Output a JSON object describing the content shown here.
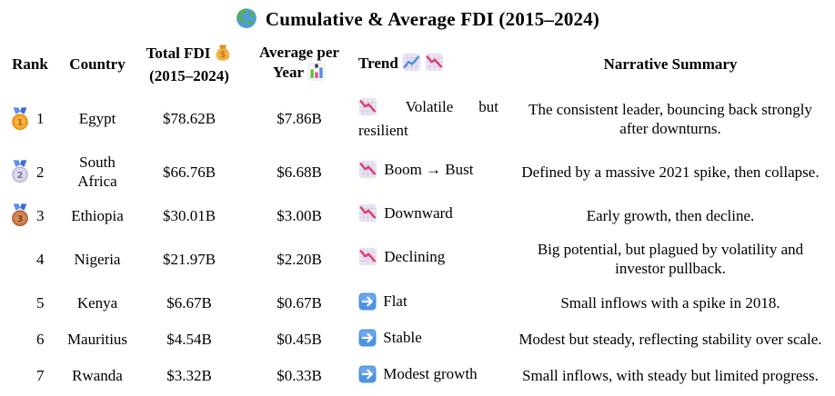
{
  "title": {
    "icon": "globe-icon",
    "text": "Cumulative & Average FDI (2015–2024)"
  },
  "table": {
    "headers": {
      "rank": "Rank",
      "country": "Country",
      "total_line1": "Total FDI",
      "total_line2": "(2015–2024)",
      "average_line1": "Average per",
      "average_line2": "Year",
      "trend": "Trend",
      "narrative": "Narrative Summary"
    },
    "rows": [
      {
        "rank": "1",
        "medal_icon": "gold-medal-icon",
        "country": "Egypt",
        "total": "$78.62B",
        "average": "$7.86B",
        "trend_icon": "chart-down-icon",
        "trend": "Volatile but resilient",
        "narrative": "The consistent leader, bouncing back strongly after downturns."
      },
      {
        "rank": "2",
        "medal_icon": "silver-medal-icon",
        "country": "South Africa",
        "total": "$66.76B",
        "average": "$6.68B",
        "trend_icon": "chart-down-icon",
        "trend": "Boom → Bust",
        "narrative": "Defined by a massive 2021 spike, then collapse."
      },
      {
        "rank": "3",
        "medal_icon": "bronze-medal-icon",
        "country": "Ethiopia",
        "total": "$30.01B",
        "average": "$3.00B",
        "trend_icon": "chart-down-icon",
        "trend": "Downward",
        "narrative": "Early growth, then decline."
      },
      {
        "rank": "4",
        "medal_icon": null,
        "country": "Nigeria",
        "total": "$21.97B",
        "average": "$2.20B",
        "trend_icon": "chart-down-icon",
        "trend": "Declining",
        "narrative": "Big potential, but plagued by volatility and investor pullback."
      },
      {
        "rank": "5",
        "medal_icon": null,
        "country": "Kenya",
        "total": "$6.67B",
        "average": "$0.67B",
        "trend_icon": "arrow-right-icon",
        "trend": "Flat",
        "narrative": "Small inflows with a spike in 2018."
      },
      {
        "rank": "6",
        "medal_icon": null,
        "country": "Mauritius",
        "total": "$4.54B",
        "average": "$0.45B",
        "trend_icon": "arrow-right-icon",
        "trend": "Stable",
        "narrative": "Modest but steady, reflecting stability over scale."
      },
      {
        "rank": "7",
        "medal_icon": null,
        "country": "Rwanda",
        "total": "$3.32B",
        "average": "$0.33B",
        "trend_icon": "arrow-right-icon",
        "trend": "Modest growth",
        "narrative": "Small inflows, with steady but limited progress."
      }
    ]
  },
  "colors": {
    "globe_ocean": "#4E9BE0",
    "globe_land": "#55AE59",
    "money_bag_orange": "#F6B042",
    "money_bag_dark": "#D98F2B",
    "money_bag_text": "#B97B22",
    "bar_green": "#67C23A",
    "bar_pink": "#E8508C",
    "bar_blue": "#4D8FE8",
    "bar_dark": "#3A3A3A",
    "chart_bg": "#EBE6F3",
    "chart_grid": "#D3CAE6",
    "trend_down_line": "#DD3E6E",
    "trend_up_line": "#4D8FE8",
    "arrow_btn_blue": "#4B93E5",
    "ribbon_blue_light": "#5B8DEE",
    "ribbon_blue_dark": "#3E6BD6",
    "medal_gold": "#F6A623",
    "medal_gold_edge": "#E0891A",
    "medal_gold_text": "#B5690F",
    "medal_silver": "#D8D3E8",
    "medal_silver_edge": "#B8B0CC",
    "medal_silver_text": "#7A7294",
    "medal_bronze": "#CE7B48",
    "medal_bronze_edge": "#AD5C2C",
    "medal_bronze_text": "#7E3D16"
  }
}
